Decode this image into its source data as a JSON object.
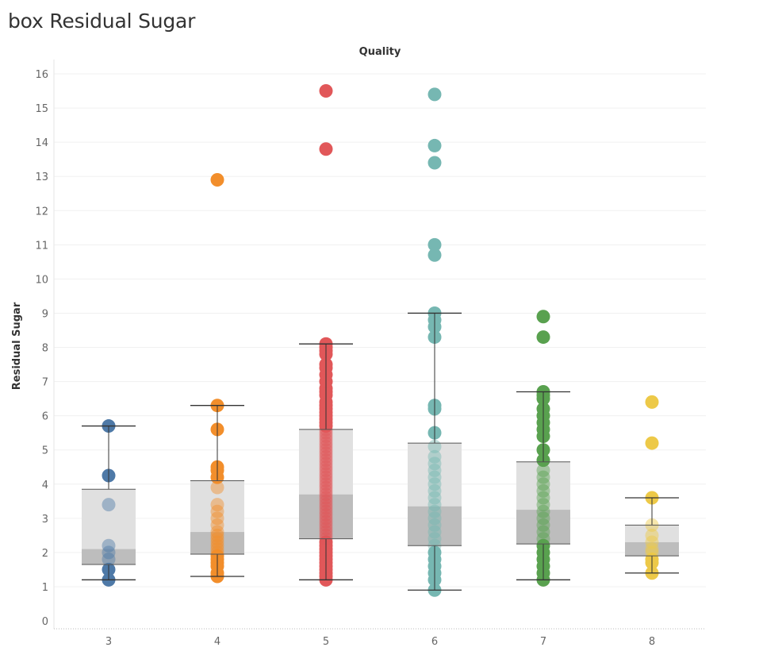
{
  "page": {
    "title": "box Residual Sugar"
  },
  "chart_data": {
    "type": "box",
    "title": "box Residual Sugar",
    "xlabel": "Quality",
    "ylabel": "Residual Sugar",
    "ylim": [
      0,
      16
    ],
    "yticks": [
      "0",
      "1",
      "2",
      "3",
      "4",
      "5",
      "6",
      "7",
      "8",
      "9",
      "10",
      "11",
      "12",
      "13",
      "14",
      "15",
      "16"
    ],
    "categories": [
      "3",
      "4",
      "5",
      "6",
      "7",
      "8"
    ],
    "colors": {
      "3": "#4e79a7",
      "4": "#f28e2b",
      "5": "#e15759",
      "6": "#76b7b2",
      "7": "#59a14f",
      "8": "#edc948"
    },
    "box_colors": {
      "upper": "#e0e0e0",
      "lower": "#bdbdbd",
      "whisker": "#333333"
    },
    "grid": true,
    "series": [
      {
        "category": "3",
        "whisker_low": 1.2,
        "q1": 1.65,
        "median": 2.1,
        "q3": 3.85,
        "whisker_high": 5.7,
        "points": [
          1.2,
          1.5,
          1.8,
          2.0,
          2.2,
          3.4,
          4.25,
          5.7
        ]
      },
      {
        "category": "4",
        "whisker_low": 1.3,
        "q1": 1.95,
        "median": 2.6,
        "q3": 4.1,
        "whisker_high": 6.3,
        "points": [
          1.3,
          1.4,
          1.6,
          1.7,
          1.8,
          1.9,
          2.0,
          2.1,
          2.2,
          2.3,
          2.4,
          2.5,
          2.6,
          2.8,
          3.0,
          3.2,
          3.4,
          3.9,
          4.2,
          4.4,
          4.5,
          5.6,
          6.3,
          12.9
        ]
      },
      {
        "category": "5",
        "whisker_low": 1.2,
        "q1": 2.4,
        "median": 3.7,
        "q3": 5.6,
        "whisker_high": 8.1,
        "points": [
          1.2,
          1.3,
          1.4,
          1.5,
          1.6,
          1.7,
          1.8,
          1.9,
          2.0,
          2.1,
          2.2,
          2.3,
          2.4,
          2.5,
          2.6,
          2.7,
          2.8,
          2.9,
          3.0,
          3.1,
          3.2,
          3.3,
          3.4,
          3.5,
          3.6,
          3.7,
          3.8,
          3.9,
          4.0,
          4.1,
          4.2,
          4.3,
          4.4,
          4.5,
          4.6,
          4.7,
          4.8,
          4.9,
          5.0,
          5.1,
          5.2,
          5.3,
          5.4,
          5.5,
          5.6,
          5.7,
          5.8,
          5.9,
          6.0,
          6.1,
          6.2,
          6.3,
          6.4,
          6.6,
          6.7,
          6.8,
          7.0,
          7.2,
          7.4,
          7.5,
          7.8,
          7.9,
          8.0,
          8.1,
          13.8,
          15.5
        ]
      },
      {
        "category": "6",
        "whisker_low": 0.9,
        "q1": 2.2,
        "median": 3.35,
        "q3": 5.2,
        "whisker_high": 9.0,
        "points": [
          0.9,
          1.2,
          1.4,
          1.6,
          1.8,
          2.0,
          2.2,
          2.4,
          2.6,
          2.8,
          3.0,
          3.2,
          3.4,
          3.6,
          3.8,
          4.0,
          4.2,
          4.4,
          4.6,
          4.8,
          5.1,
          5.5,
          6.2,
          6.3,
          8.3,
          8.6,
          8.8,
          9.0,
          10.7,
          11.0,
          13.4,
          13.9,
          15.4
        ]
      },
      {
        "category": "7",
        "whisker_low": 1.2,
        "q1": 2.25,
        "median": 3.25,
        "q3": 4.65,
        "whisker_high": 6.7,
        "points": [
          1.2,
          1.4,
          1.6,
          1.8,
          2.0,
          2.2,
          2.4,
          2.6,
          2.8,
          3.0,
          3.2,
          3.4,
          3.6,
          3.8,
          4.0,
          4.2,
          4.4,
          4.7,
          5.0,
          5.4,
          5.6,
          5.8,
          6.0,
          6.2,
          6.5,
          6.6,
          6.7,
          8.3,
          8.9
        ]
      },
      {
        "category": "8",
        "whisker_low": 1.4,
        "q1": 1.9,
        "median": 2.3,
        "q3": 2.8,
        "whisker_high": 3.6,
        "points": [
          1.4,
          1.7,
          1.8,
          2.0,
          2.1,
          2.3,
          2.5,
          2.8,
          3.6,
          5.2,
          6.4
        ]
      }
    ]
  }
}
